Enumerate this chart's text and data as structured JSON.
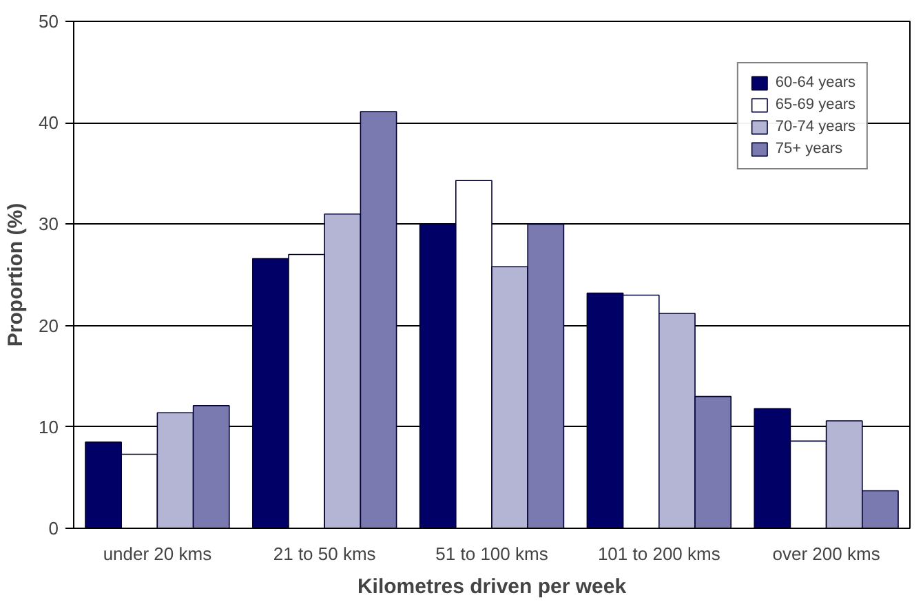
{
  "chart_data": {
    "type": "bar",
    "xlabel": "Kilometres driven per week",
    "ylabel": "Proportion (%)",
    "categories": [
      "under 20 kms",
      "21 to 50 kms",
      "51 to 100 kms",
      "101 to 200 kms",
      "over 200 kms"
    ],
    "series": [
      {
        "name": "60-64 years",
        "color": "#000066",
        "values": [
          8.5,
          26.6,
          30.0,
          23.2,
          11.8
        ]
      },
      {
        "name": "65-69 years",
        "color": "#ffffff",
        "values": [
          7.3,
          27.0,
          34.3,
          23.0,
          8.6
        ]
      },
      {
        "name": "70-74 years",
        "color": "#b4b4d4",
        "values": [
          11.4,
          31.0,
          25.8,
          21.2,
          10.6
        ]
      },
      {
        "name": "75+ years",
        "color": "#7a7ab0",
        "values": [
          12.1,
          41.1,
          30.0,
          13.0,
          3.7
        ]
      }
    ],
    "ylim": [
      0,
      50
    ],
    "yticks": [
      0,
      10,
      20,
      30,
      40,
      50
    ],
    "grid": "y",
    "legend": "top right"
  }
}
